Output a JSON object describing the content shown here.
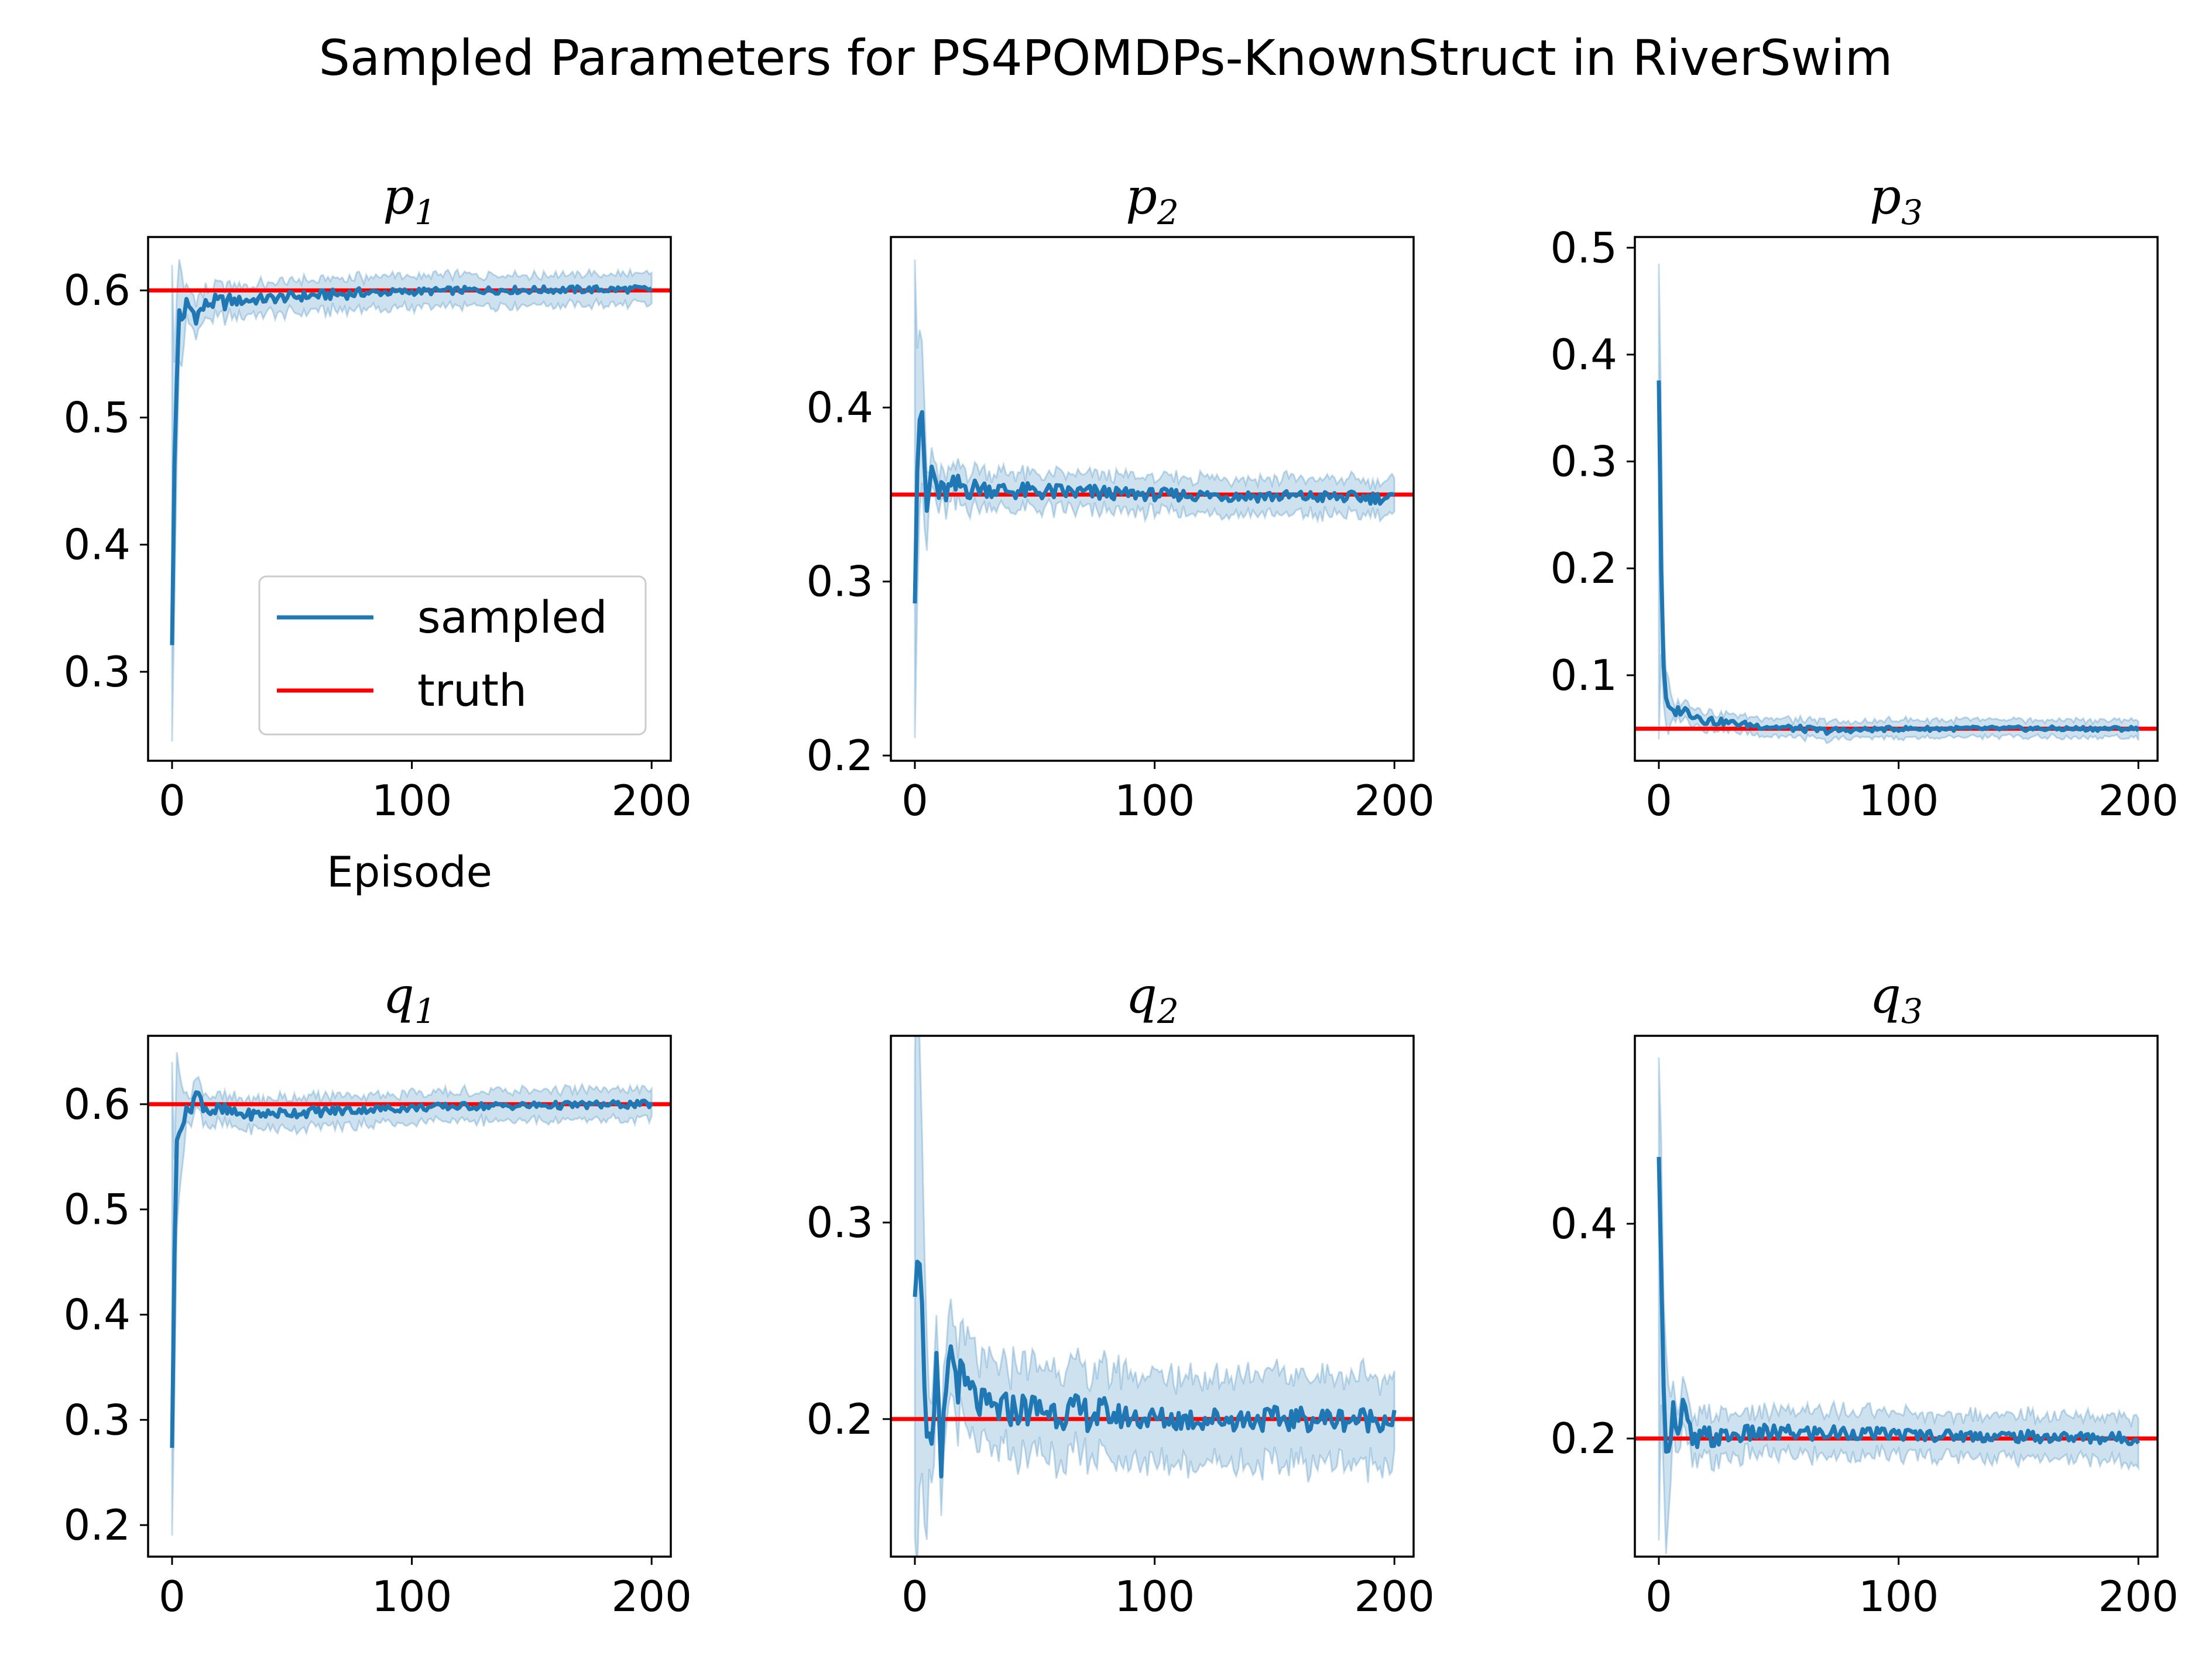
{
  "figure": {
    "title": "Sampled Parameters for PS4POMDPs-KnownStruct in RiverSwim"
  },
  "legend": {
    "items": [
      {
        "label": "sampled",
        "color": "#1f77b4"
      },
      {
        "label": "truth",
        "color": "#ff0000"
      }
    ],
    "location": "lower-right of first subplot"
  },
  "colors": {
    "sampled": "#1f77b4",
    "band": "#1f77b4",
    "truth": "#ff0000"
  },
  "chart_data": [
    {
      "type": "line",
      "title_base": "p",
      "title_sub": "1",
      "xlabel": "Episode",
      "xlim": [
        -10,
        208
      ],
      "ylim": [
        0.23,
        0.642
      ],
      "xticks": [
        0,
        100,
        200
      ],
      "xtick_labels": [
        "0",
        "100",
        "200"
      ],
      "yticks": [
        0.3,
        0.4,
        0.5,
        0.6
      ],
      "ytick_labels": [
        "0.3",
        "0.4",
        "0.5",
        "0.6"
      ],
      "truth": 0.6,
      "band_peak": 0.62,
      "band_floor": 0.245,
      "sampled_keypoints": [
        [
          0,
          0.325
        ],
        [
          1,
          0.46
        ],
        [
          2,
          0.53
        ],
        [
          3,
          0.585
        ],
        [
          5,
          0.575
        ],
        [
          6,
          0.59
        ],
        [
          10,
          0.58
        ],
        [
          15,
          0.59
        ],
        [
          30,
          0.592
        ],
        [
          50,
          0.595
        ],
        [
          80,
          0.598
        ],
        [
          120,
          0.6
        ],
        [
          200,
          0.601
        ]
      ],
      "noise_amp": 0.004,
      "band_width": 0.012
    },
    {
      "type": "line",
      "title_base": "p",
      "title_sub": "2",
      "xlabel": "",
      "xlim": [
        -10,
        208
      ],
      "ylim": [
        0.197,
        0.498
      ],
      "xticks": [
        0,
        100,
        200
      ],
      "xtick_labels": [
        "0",
        "100",
        "200"
      ],
      "yticks": [
        0.2,
        0.3,
        0.4
      ],
      "ytick_labels": [
        "0.2",
        "0.3",
        "0.4"
      ],
      "truth": 0.35,
      "band_peak": 0.485,
      "band_floor": 0.21,
      "sampled_keypoints": [
        [
          0,
          0.295
        ],
        [
          1,
          0.37
        ],
        [
          2,
          0.395
        ],
        [
          3,
          0.4
        ],
        [
          4,
          0.36
        ],
        [
          5,
          0.34
        ],
        [
          7,
          0.365
        ],
        [
          10,
          0.35
        ],
        [
          20,
          0.355
        ],
        [
          40,
          0.352
        ],
        [
          100,
          0.35
        ],
        [
          200,
          0.348
        ]
      ],
      "noise_amp": 0.005,
      "band_width": 0.01
    },
    {
      "type": "line",
      "title_base": "p",
      "title_sub": "3",
      "xlabel": "",
      "xlim": [
        -10,
        208
      ],
      "ylim": [
        0.02,
        0.51
      ],
      "xticks": [
        0,
        100,
        200
      ],
      "xtick_labels": [
        "0",
        "100",
        "200"
      ],
      "yticks": [
        0.1,
        0.2,
        0.3,
        0.4,
        0.5
      ],
      "ytick_labels": [
        "0.1",
        "0.2",
        "0.3",
        "0.4",
        "0.5"
      ],
      "truth": 0.05,
      "band_peak": 0.485,
      "band_floor": 0.04,
      "sampled_keypoints": [
        [
          0,
          0.378
        ],
        [
          1,
          0.2
        ],
        [
          2,
          0.11
        ],
        [
          3,
          0.075
        ],
        [
          5,
          0.065
        ],
        [
          10,
          0.068
        ],
        [
          20,
          0.058
        ],
        [
          40,
          0.053
        ],
        [
          70,
          0.048
        ],
        [
          100,
          0.05
        ],
        [
          200,
          0.05
        ]
      ],
      "noise_amp": 0.003,
      "band_width": 0.008
    },
    {
      "type": "line",
      "title_base": "q",
      "title_sub": "1",
      "xlabel": "",
      "xlim": [
        -10,
        208
      ],
      "ylim": [
        0.17,
        0.665
      ],
      "xticks": [
        0,
        100,
        200
      ],
      "xtick_labels": [
        "0",
        "100",
        "200"
      ],
      "yticks": [
        0.2,
        0.3,
        0.4,
        0.5,
        0.6
      ],
      "ytick_labels": [
        "0.2",
        "0.3",
        "0.4",
        "0.5",
        "0.6"
      ],
      "truth": 0.6,
      "band_peak": 0.64,
      "band_floor": 0.19,
      "sampled_keypoints": [
        [
          0,
          0.278
        ],
        [
          1,
          0.45
        ],
        [
          2,
          0.565
        ],
        [
          3,
          0.58
        ],
        [
          6,
          0.59
        ],
        [
          10,
          0.61
        ],
        [
          15,
          0.595
        ],
        [
          30,
          0.59
        ],
        [
          50,
          0.592
        ],
        [
          80,
          0.595
        ],
        [
          120,
          0.598
        ],
        [
          200,
          0.6
        ]
      ],
      "noise_amp": 0.005,
      "band_width": 0.014
    },
    {
      "type": "line",
      "title_base": "q",
      "title_sub": "2",
      "xlabel": "",
      "xlim": [
        -10,
        208
      ],
      "ylim": [
        0.13,
        0.395
      ],
      "xticks": [
        0,
        100,
        200
      ],
      "xtick_labels": [
        "0",
        "100",
        "200"
      ],
      "yticks": [
        0.2,
        0.3
      ],
      "ytick_labels": [
        "0.2",
        "0.3"
      ],
      "truth": 0.2,
      "band_peak": 0.385,
      "band_floor": 0.14,
      "sampled_keypoints": [
        [
          0,
          0.275
        ],
        [
          1,
          0.29
        ],
        [
          2,
          0.29
        ],
        [
          3,
          0.25
        ],
        [
          5,
          0.2
        ],
        [
          7,
          0.175
        ],
        [
          9,
          0.22
        ],
        [
          11,
          0.17
        ],
        [
          14,
          0.235
        ],
        [
          20,
          0.215
        ],
        [
          30,
          0.205
        ],
        [
          50,
          0.205
        ],
        [
          100,
          0.2
        ],
        [
          150,
          0.2
        ],
        [
          200,
          0.2
        ]
      ],
      "noise_amp": 0.009,
      "band_width": 0.022
    },
    {
      "type": "line",
      "title_base": "q",
      "title_sub": "3",
      "xlabel": "",
      "xlim": [
        -10,
        208
      ],
      "ylim": [
        0.09,
        0.575
      ],
      "xticks": [
        0,
        100,
        200
      ],
      "xtick_labels": [
        "0",
        "100",
        "200"
      ],
      "yticks": [
        0.2,
        0.4
      ],
      "ytick_labels": [
        "0.2",
        "0.4"
      ],
      "truth": 0.2,
      "band_peak": 0.555,
      "band_floor": 0.105,
      "sampled_keypoints": [
        [
          0,
          0.45
        ],
        [
          1,
          0.35
        ],
        [
          2,
          0.26
        ],
        [
          3,
          0.2
        ],
        [
          4,
          0.18
        ],
        [
          6,
          0.24
        ],
        [
          8,
          0.2
        ],
        [
          10,
          0.23
        ],
        [
          14,
          0.195
        ],
        [
          20,
          0.2
        ],
        [
          40,
          0.205
        ],
        [
          80,
          0.205
        ],
        [
          120,
          0.203
        ],
        [
          200,
          0.2
        ]
      ],
      "noise_amp": 0.008,
      "band_width": 0.02
    }
  ]
}
